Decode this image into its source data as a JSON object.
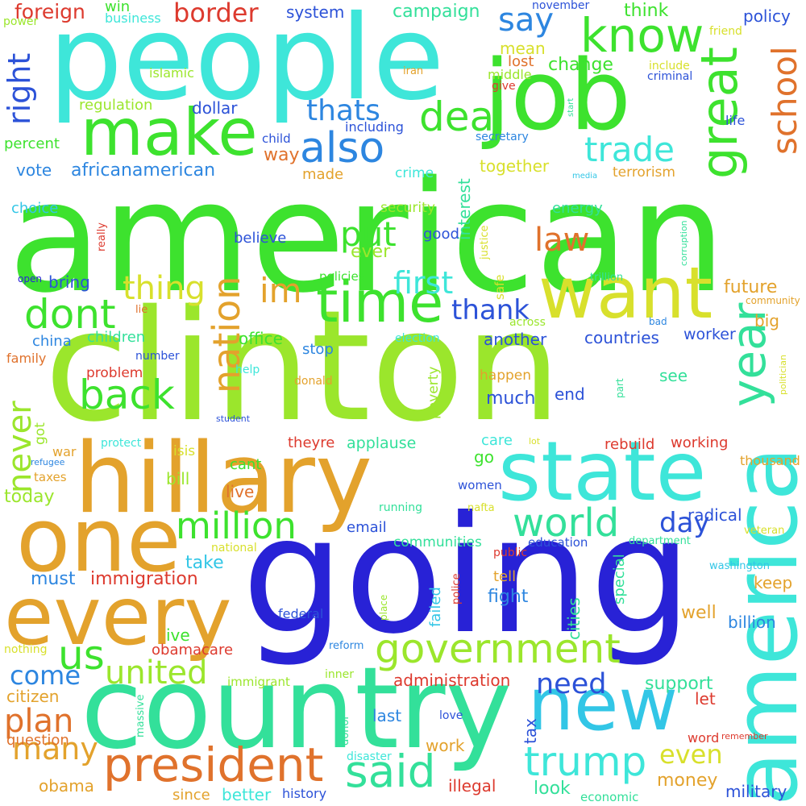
{
  "word_cloud": {
    "big": {
      "american": "american",
      "clinton": "clinton",
      "going": "going",
      "people": "people",
      "country": "country",
      "hillary": "hillary",
      "job": "job",
      "one": "one",
      "state": "state",
      "america": "america",
      "every": "every",
      "want": "want",
      "make": "make",
      "new": "new",
      "time": "time",
      "government": "government",
      "president": "president",
      "great": "great",
      "know": "know",
      "year": "year",
      "school": "school",
      "trump": "trump",
      "world": "world",
      "said": "said",
      "us": "us",
      "million": "million",
      "back": "back",
      "dont": "dont",
      "united": "united",
      "also": "also",
      "deal": "deal",
      "trade": "trade",
      "nation": "nation",
      "im": "im",
      "thing": "thing",
      "put": "put",
      "never": "never",
      "many": "many",
      "plan": "plan",
      "come": "come",
      "thats": "thats",
      "say": "say",
      "law": "law",
      "first": "first",
      "thank": "thank",
      "need": "need",
      "right": "right",
      "day": "day",
      "even": "even",
      "border": "border"
    },
    "small": {
      "foreign": "foreign",
      "win": "win",
      "business": "business",
      "system": "system",
      "campaign": "campaign",
      "november": "november",
      "think": "think",
      "policy": "policy",
      "power": "power",
      "friend": "friend",
      "islamic": "islamic",
      "mean": "mean",
      "lost": "lost",
      "change": "change",
      "include": "include",
      "iran": "iran",
      "middle": "middle",
      "give": "give",
      "criminal": "criminal",
      "regulation": "regulation",
      "dollar": "dollar",
      "including": "including",
      "life": "life",
      "child": "child",
      "secretary": "secretary",
      "start": "start",
      "percent": "percent",
      "way": "way",
      "interest": "interest",
      "together": "together",
      "terrorism": "terrorism",
      "vote": "vote",
      "africanamerican": "africanamerican",
      "made": "made",
      "crime": "crime",
      "media": "media",
      "choice": "choice",
      "security": "security",
      "energy": "energy",
      "really": "really",
      "believe": "believe",
      "good": "good",
      "justice": "justice",
      "corruption": "corruption",
      "ever": "ever",
      "open": "open",
      "bring": "bring",
      "policies": "policies",
      "safe": "safe",
      "trillion": "trillion",
      "future": "future",
      "community": "community",
      "lie": "lie",
      "across": "across",
      "bad": "bad",
      "big": "big",
      "china": "china",
      "children": "children",
      "another": "another",
      "countries": "countries",
      "worker": "worker",
      "office": "office",
      "election": "election",
      "family": "family",
      "number": "number",
      "stop": "stop",
      "politician": "politician",
      "help": "help",
      "problem": "problem",
      "donald": "donald",
      "poverty": "poverty",
      "happen": "happen",
      "much": "much",
      "see": "see",
      "end": "end",
      "part": "part",
      "student": "student",
      "got": "got",
      "protect": "protect",
      "isis": "isis",
      "theyre": "theyre",
      "applause": "applause",
      "care": "care",
      "lot": "lot",
      "rebuild": "rebuild",
      "working": "working",
      "war": "war",
      "refugee": "refugee",
      "cant": "cant",
      "go": "go",
      "thousand": "thousand",
      "bill": "bill",
      "taxes": "taxes",
      "today": "today",
      "live": "live",
      "women": "women",
      "running": "running",
      "email": "email",
      "nafta": "nafta",
      "radical": "radical",
      "veteran": "veteran",
      "communities": "communities",
      "education": "education",
      "department": "department",
      "national": "national",
      "public": "public",
      "take": "take",
      "washington": "washington",
      "must": "must",
      "immigration": "immigration",
      "failed": "failed",
      "police": "police",
      "tell": "tell",
      "special": "special",
      "keep": "keep",
      "place": "place",
      "fight": "fight",
      "cities": "cities",
      "federal": "federal",
      "well": "well",
      "billion": "billion",
      "ive": "ive",
      "nothing": "nothing",
      "obamacare": "obamacare",
      "reform": "reform",
      "massive": "massive",
      "immigrant": "immigrant",
      "inner": "inner",
      "administration": "administration",
      "support": "support",
      "citizen": "citizen",
      "let": "let",
      "last": "last",
      "love": "love",
      "tax": "tax",
      "question": "question",
      "donor": "donor",
      "word": "word",
      "remember": "remember",
      "work": "work",
      "disaster": "disaster",
      "obama": "obama",
      "illegal": "illegal",
      "look": "look",
      "money": "money",
      "since": "since",
      "better": "better",
      "history": "history",
      "economic": "economic",
      "military": "military"
    }
  },
  "colors": {
    "green": "#3de22e",
    "lime": "#9be62c",
    "yellow": "#d8e02c",
    "orange": "#e3a22c",
    "burnt_orange": "#e0722c",
    "red": "#dd3a2e",
    "cyan": "#3ee6d9",
    "teal": "#33e09a",
    "sky": "#32c6e6",
    "blue": "#2d86e0",
    "royal": "#2c52d8",
    "indigo": "#2822d6"
  }
}
